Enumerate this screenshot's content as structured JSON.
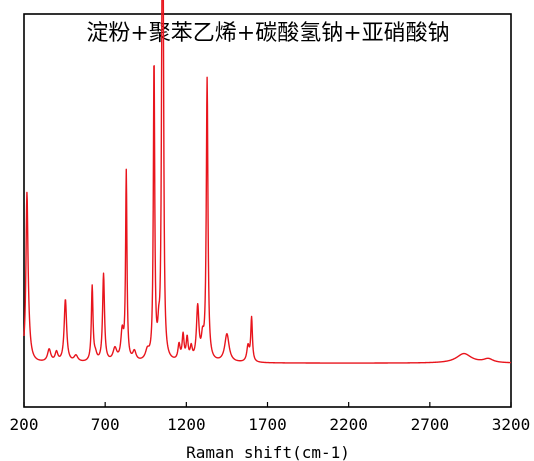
{
  "chart_data": {
    "type": "line",
    "title": "淀粉+聚苯乙烯+碳酸氢钠+亚硝酸钠",
    "xlabel": "Raman shift(cm-1)",
    "ylabel": "",
    "xlim": [
      200,
      3200
    ],
    "ylim": [
      0,
      100
    ],
    "x_ticks": [
      200,
      700,
      1200,
      1700,
      2200,
      2700,
      3200
    ],
    "x_tick_labels": [
      "200",
      "700",
      "1200",
      "1700",
      "2200",
      "2700",
      "3200"
    ],
    "y_ticks_shown": false,
    "grid": false,
    "legend": "none",
    "line_color": "#e8141c",
    "series": [
      {
        "baseline": 2.5,
        "peaks": [
          {
            "x": 218,
            "height": 46,
            "width": 7
          },
          {
            "x": 224,
            "height": 10,
            "width": 14
          },
          {
            "x": 355,
            "height": 4,
            "width": 12
          },
          {
            "x": 400,
            "height": 3,
            "width": 10
          },
          {
            "x": 455,
            "height": 20,
            "width": 9
          },
          {
            "x": 520,
            "height": 2,
            "width": 14
          },
          {
            "x": 620,
            "height": 24,
            "width": 6
          },
          {
            "x": 640,
            "height": 2,
            "width": 10
          },
          {
            "x": 690,
            "height": 28,
            "width": 7
          },
          {
            "x": 760,
            "height": 4,
            "width": 14
          },
          {
            "x": 805,
            "height": 9,
            "width": 10
          },
          {
            "x": 830,
            "height": 60,
            "width": 5
          },
          {
            "x": 880,
            "height": 3,
            "width": 12
          },
          {
            "x": 960,
            "height": 3,
            "width": 14
          },
          {
            "x": 1001,
            "height": 96,
            "width": 5
          },
          {
            "x": 1030,
            "height": 7,
            "width": 7
          },
          {
            "x": 1050,
            "height": 85,
            "width": 5
          },
          {
            "x": 1057,
            "height": 100,
            "width": 5
          },
          {
            "x": 1155,
            "height": 5,
            "width": 8
          },
          {
            "x": 1180,
            "height": 8,
            "width": 7
          },
          {
            "x": 1205,
            "height": 7,
            "width": 7
          },
          {
            "x": 1230,
            "height": 4,
            "width": 8
          },
          {
            "x": 1270,
            "height": 17,
            "width": 9
          },
          {
            "x": 1300,
            "height": 6,
            "width": 9
          },
          {
            "x": 1328,
            "height": 90,
            "width": 6
          },
          {
            "x": 1450,
            "height": 9,
            "width": 16
          },
          {
            "x": 1580,
            "height": 5,
            "width": 9
          },
          {
            "x": 1602,
            "height": 14,
            "width": 6
          },
          {
            "x": 2910,
            "height": 3,
            "width": 55
          },
          {
            "x": 3060,
            "height": 1.2,
            "width": 35
          }
        ]
      }
    ]
  }
}
